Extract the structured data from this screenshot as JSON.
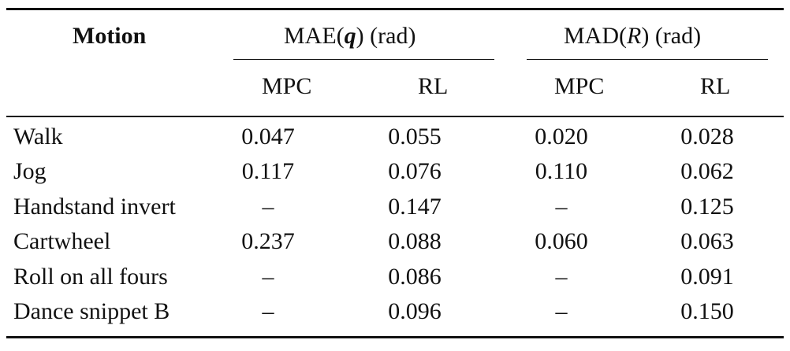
{
  "table": {
    "header": {
      "motion": "Motion",
      "group1_prefix": "MAE(",
      "group1_var": "q",
      "group1_suffix": ") (rad)",
      "group2_prefix": "MAD(",
      "group2_var": "R",
      "group2_suffix": ") (rad)"
    },
    "subheaders": [
      "MPC",
      "RL",
      "MPC",
      "RL"
    ],
    "rows": [
      {
        "motion": "Walk",
        "mae_mpc": "0.047",
        "mae_rl": "0.055",
        "mad_mpc": "0.020",
        "mad_rl": "0.028"
      },
      {
        "motion": "Jog",
        "mae_mpc": "0.117",
        "mae_rl": "0.076",
        "mad_mpc": "0.110",
        "mad_rl": "0.062"
      },
      {
        "motion": "Handstand invert",
        "mae_mpc": "–",
        "mae_rl": "0.147",
        "mad_mpc": "–",
        "mad_rl": "0.125"
      },
      {
        "motion": "Cartwheel",
        "mae_mpc": "0.237",
        "mae_rl": "0.088",
        "mad_mpc": "0.060",
        "mad_rl": "0.063"
      },
      {
        "motion": "Roll on all fours",
        "mae_mpc": "–",
        "mae_rl": "0.086",
        "mad_mpc": "–",
        "mad_rl": "0.091"
      },
      {
        "motion": "Dance snippet B",
        "mae_mpc": "–",
        "mae_rl": "0.096",
        "mad_mpc": "–",
        "mad_rl": "0.150"
      }
    ]
  }
}
